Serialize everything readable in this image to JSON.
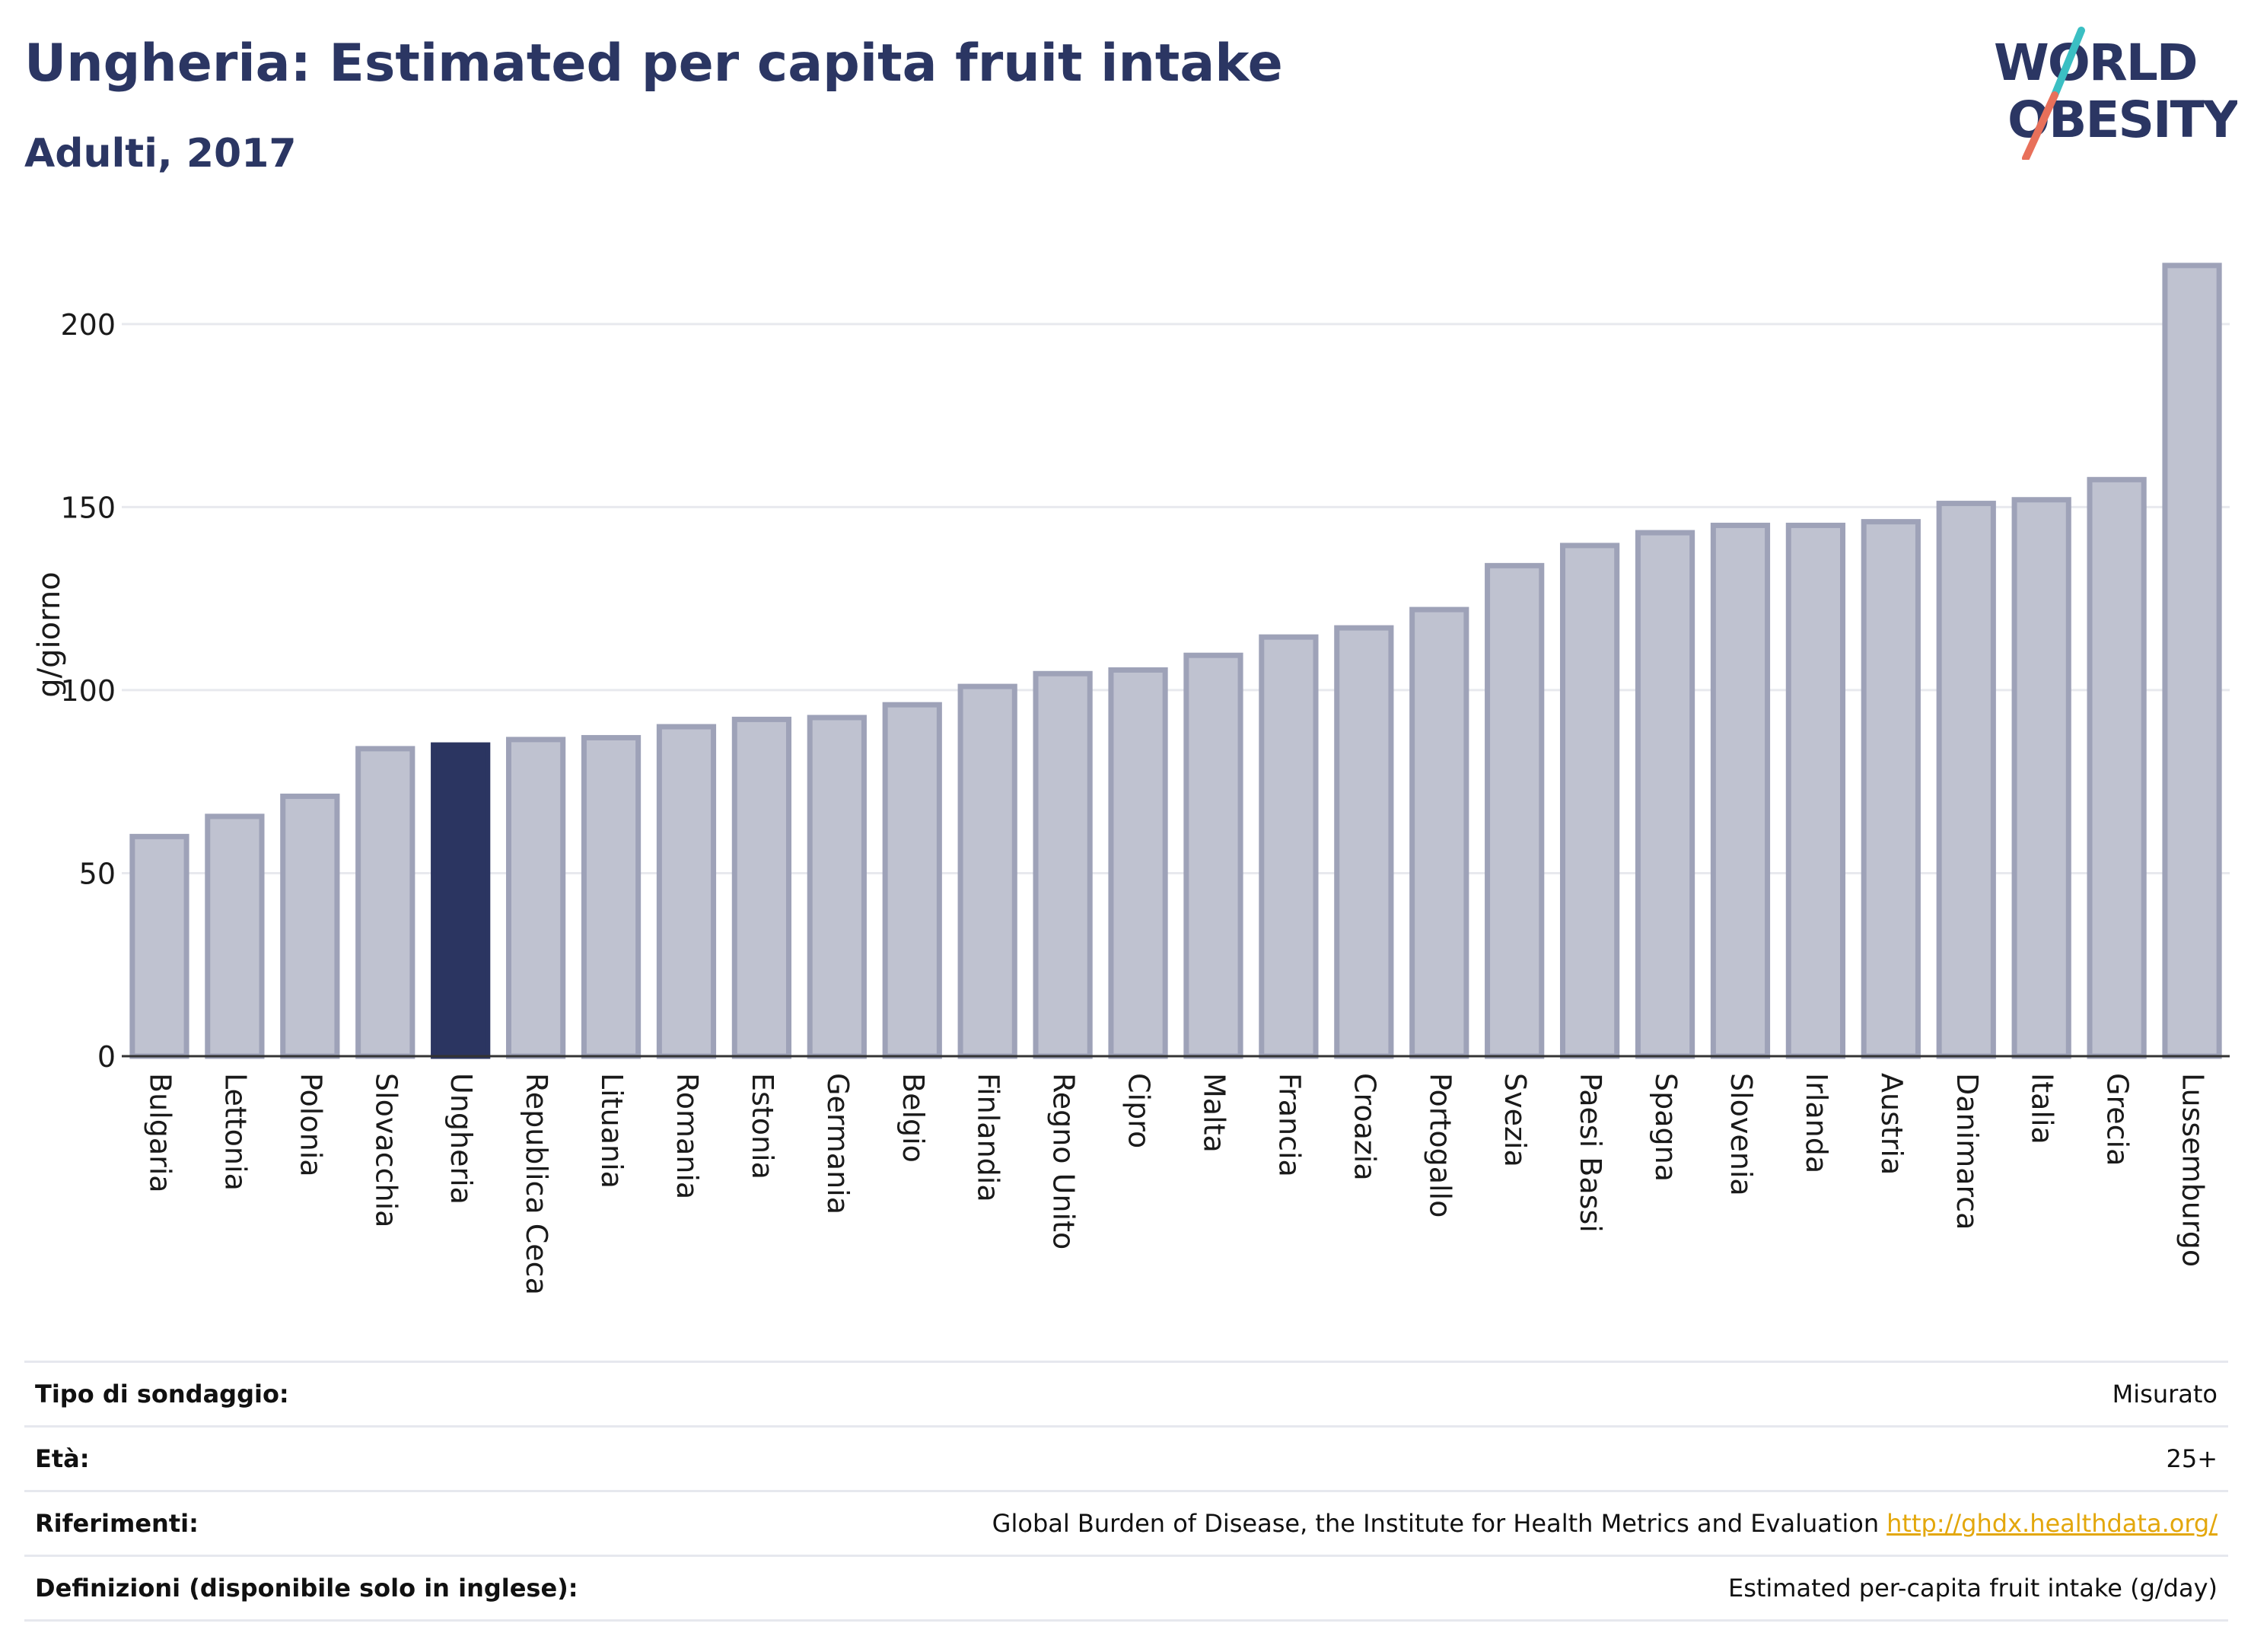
{
  "header": {
    "title": "Ungheria: Estimated per capita fruit intake",
    "subtitle": "Adulti, 2017"
  },
  "logo": {
    "line1": "WORLD",
    "line2": "OBESITY",
    "colors": {
      "text": "#2b3663",
      "slash_top": "#3bbfc3",
      "slash_bottom": "#e8705a"
    }
  },
  "colors": {
    "bar_default": "#bfc2d0",
    "bar_border": "#9ea2b8",
    "bar_highlight": "#2b3561",
    "grid": "#e8e9ee",
    "axis": "#333333",
    "link": "#e3a70c"
  },
  "chart_data": {
    "type": "bar",
    "title": "Ungheria: Estimated per capita fruit intake",
    "subtitle": "Adulti, 2017",
    "xlabel": "",
    "ylabel": "g/giorno",
    "ylim": [
      0,
      222
    ],
    "yticks": [
      0,
      50,
      100,
      150,
      200
    ],
    "grid": true,
    "highlight": "Ungheria",
    "categories": [
      "Bulgaria",
      "Lettonia",
      "Polonia",
      "Slovacchia",
      "Ungheria",
      "Republica Ceca",
      "Lituania",
      "Romania",
      "Estonia",
      "Germania",
      "Belgio",
      "Finlandia",
      "Regno Unito",
      "Cipro",
      "Malta",
      "Francia",
      "Croazia",
      "Portogallo",
      "Svezia",
      "Paesi Bassi",
      "Spagna",
      "Slovenia",
      "Irlanda",
      "Austria",
      "Danimarca",
      "Italia",
      "Grecia",
      "Lussemburgo"
    ],
    "values": [
      60,
      65.5,
      71,
      84,
      85,
      86.5,
      87,
      90,
      92,
      92.5,
      96,
      101,
      104.5,
      105.5,
      109.5,
      114.5,
      117,
      122,
      134,
      139.5,
      143,
      145,
      145,
      146,
      151,
      152,
      157.5,
      216
    ]
  },
  "info": [
    {
      "label": "Tipo di sondaggio:",
      "value": "Misurato"
    },
    {
      "label": "Età:",
      "value": "25+"
    },
    {
      "label": "Riferimenti:",
      "value": "Global Burden of Disease, the Institute for Health Metrics and Evaluation",
      "link": "http://ghdx.healthdata.org/"
    },
    {
      "label": "Definizioni (disponibile solo in inglese):",
      "value": "Estimated per-capita fruit intake (g/day)"
    }
  ]
}
